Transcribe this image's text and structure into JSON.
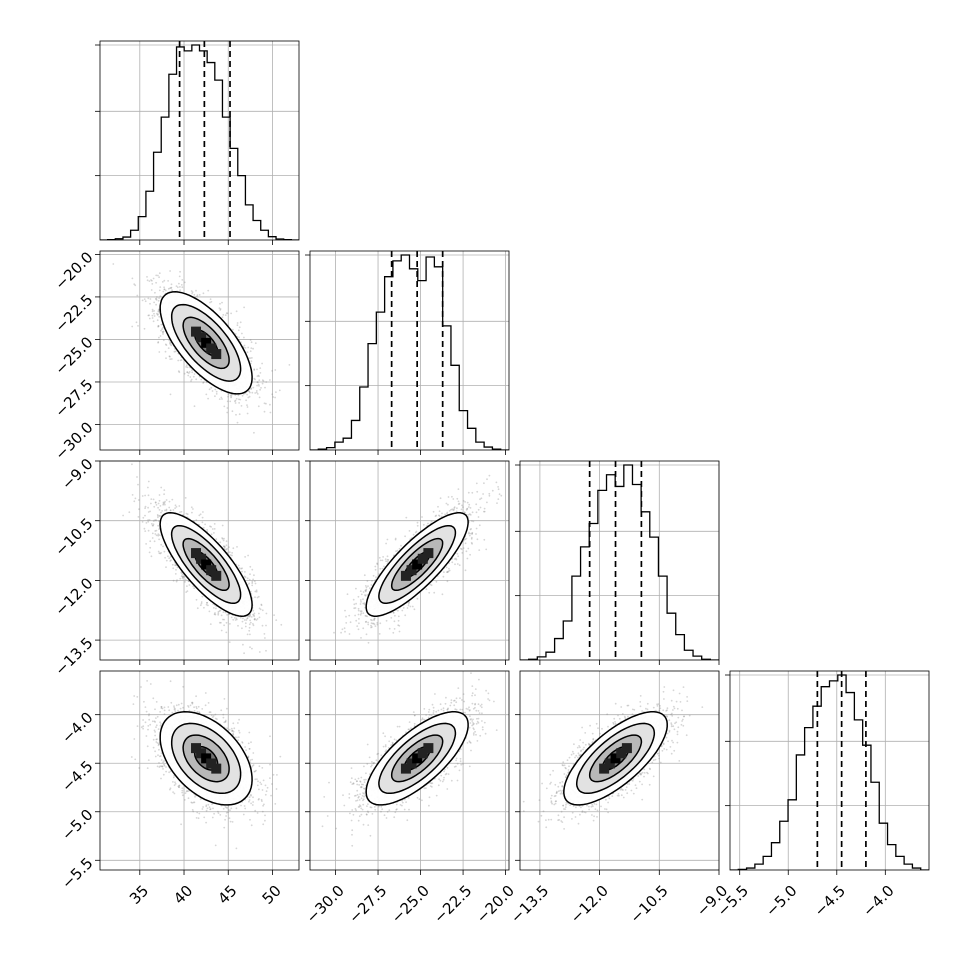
{
  "chart_data": {
    "type": "corner",
    "grid": true,
    "parameters": [
      {
        "range": [
          30.5,
          53
        ],
        "ticks": [
          35,
          40,
          45,
          50
        ],
        "tick_labels": [
          "35",
          "40",
          "45",
          "50"
        ],
        "mean": 42.5,
        "sd": 2.6,
        "quantiles": [
          39.5,
          42.3,
          45.2
        ],
        "hist_density": [
          0,
          0.002,
          0.006,
          0.015,
          0.05,
          0.12,
          0.25,
          0.45,
          0.63,
          0.85,
          0.99,
          0.97,
          1.0,
          0.97,
          0.91,
          0.82,
          0.63,
          0.47,
          0.33,
          0.18,
          0.1,
          0.05,
          0.017,
          0.005,
          0.002,
          0
        ],
        "diag_grid_levels": [
          0.33,
          0.66,
          1.0
        ]
      },
      {
        "range": [
          -31.5,
          -19.8
        ],
        "ticks": [
          -30.0,
          -27.5,
          -25.0,
          -22.5,
          -20.0
        ],
        "tick_labels": [
          "−30.0",
          "−27.5",
          "−25.0",
          "−22.5",
          "−20.0"
        ],
        "mean": -25.2,
        "sd": 1.5,
        "quantiles": [
          -26.7,
          -25.2,
          -23.7
        ],
        "hist_density": [
          0,
          0.004,
          0.012,
          0.04,
          0.06,
          0.15,
          0.32,
          0.54,
          0.7,
          0.88,
          0.96,
          0.99,
          0.92,
          0.86,
          0.98,
          0.93,
          0.63,
          0.43,
          0.2,
          0.11,
          0.04,
          0.015,
          0.004,
          0
        ],
        "diag_grid_levels": [
          0.33,
          0.66,
          1.0
        ]
      },
      {
        "range": [
          -14.0,
          -9.0
        ],
        "ticks": [
          -13.5,
          -12.0,
          -10.5,
          -9.0
        ],
        "tick_labels": [
          "−13.5",
          "−12.0",
          "−10.5",
          "−9.0"
        ],
        "mean": -11.6,
        "sd": 0.65,
        "quantiles": [
          -12.25,
          -11.6,
          -10.95
        ],
        "hist_density": [
          0,
          0.004,
          0.016,
          0.04,
          0.11,
          0.2,
          0.43,
          0.58,
          0.7,
          0.87,
          0.95,
          0.89,
          1.0,
          0.9,
          0.76,
          0.63,
          0.43,
          0.24,
          0.13,
          0.05,
          0.02,
          0.004,
          0
        ],
        "diag_grid_levels": [
          0.33,
          0.66,
          1.0
        ]
      },
      {
        "range": [
          -5.6,
          -3.55
        ],
        "ticks": [
          -5.5,
          -5.0,
          -4.5,
          -4.0
        ],
        "tick_labels": [
          "−5.5",
          "−5.0",
          "−4.5",
          "−4.0"
        ],
        "mean": -4.45,
        "sd": 0.24,
        "quantiles": [
          -4.7,
          -4.45,
          -4.2
        ],
        "hist_density": [
          0,
          0.003,
          0.01,
          0.03,
          0.07,
          0.14,
          0.25,
          0.36,
          0.59,
          0.73,
          0.84,
          0.94,
          0.97,
          1.0,
          0.91,
          0.77,
          0.64,
          0.45,
          0.24,
          0.13,
          0.07,
          0.03,
          0.01,
          0
        ],
        "diag_grid_levels": [
          0.33,
          0.66,
          1.0
        ]
      }
    ],
    "correlations": [
      [
        1.0,
        -0.68,
        -0.78,
        -0.45
      ],
      [
        -0.68,
        1.0,
        0.82,
        0.72
      ],
      [
        -0.78,
        0.82,
        1.0,
        0.72
      ],
      [
        -0.45,
        0.72,
        0.72,
        1.0
      ]
    ],
    "contour_levels_sigma": [
      0.5,
      1.0,
      1.5,
      2.0
    ],
    "samples_per_panel": 2500
  }
}
